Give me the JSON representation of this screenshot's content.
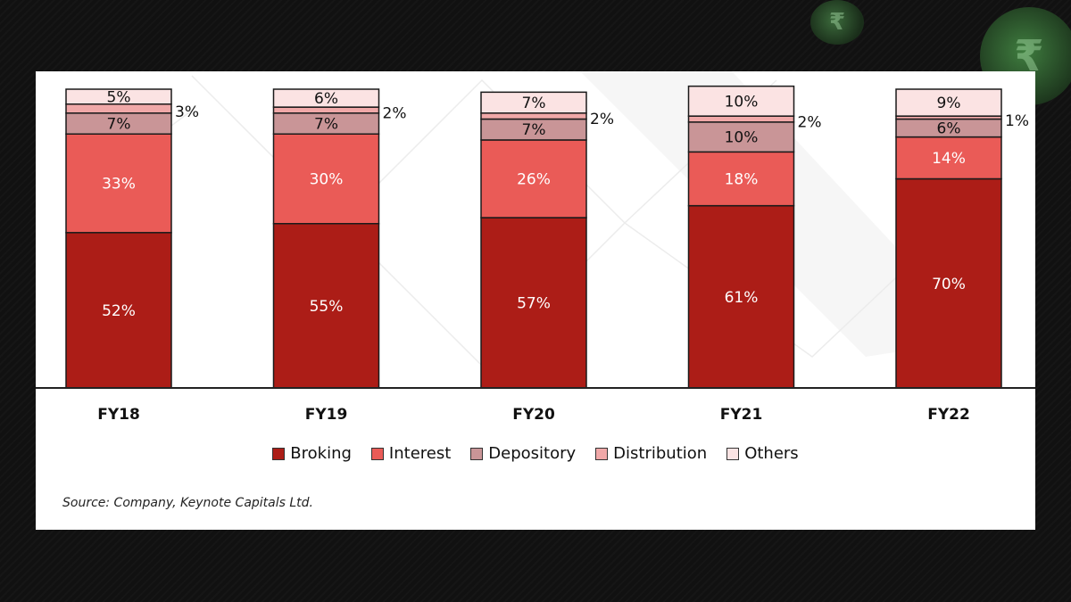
{
  "source_note": "Source: Company, Keynote Capitals Ltd.",
  "decor": {
    "coin_symbol": "₹"
  },
  "colors": {
    "Broking": "#ac1d17",
    "Interest": "#ea5b57",
    "Depository": "#c99597",
    "Distribution": "#f0a8a8",
    "Others": "#fbe3e3",
    "background": "#111111"
  },
  "chart_data": {
    "type": "bar",
    "stacked": true,
    "categories": [
      "FY18",
      "FY19",
      "FY20",
      "FY21",
      "FY22"
    ],
    "series": [
      {
        "name": "Broking",
        "values": [
          52,
          55,
          57,
          61,
          70
        ],
        "labels": [
          "52%",
          "55%",
          "57%",
          "61%",
          "70%"
        ]
      },
      {
        "name": "Interest",
        "values": [
          33,
          30,
          26,
          18,
          14
        ],
        "labels": [
          "33%",
          "30%",
          "26%",
          "18%",
          "14%"
        ]
      },
      {
        "name": "Depository",
        "values": [
          7,
          7,
          7,
          10,
          6
        ],
        "labels": [
          "7%",
          "7%",
          "7%",
          "10%",
          "6%"
        ]
      },
      {
        "name": "Distribution",
        "values": [
          3,
          2,
          2,
          2,
          1
        ],
        "labels": [
          "3%",
          "2%",
          "2%",
          "2%",
          "1%"
        ]
      },
      {
        "name": "Others",
        "values": [
          5,
          6,
          7,
          10,
          9
        ],
        "labels": [
          "5%",
          "6%",
          "7%",
          "10%",
          "9%"
        ]
      }
    ],
    "title": "",
    "xlabel": "",
    "ylabel": "",
    "ylim": [
      0,
      100
    ],
    "grid": false,
    "legend": "bottom"
  }
}
